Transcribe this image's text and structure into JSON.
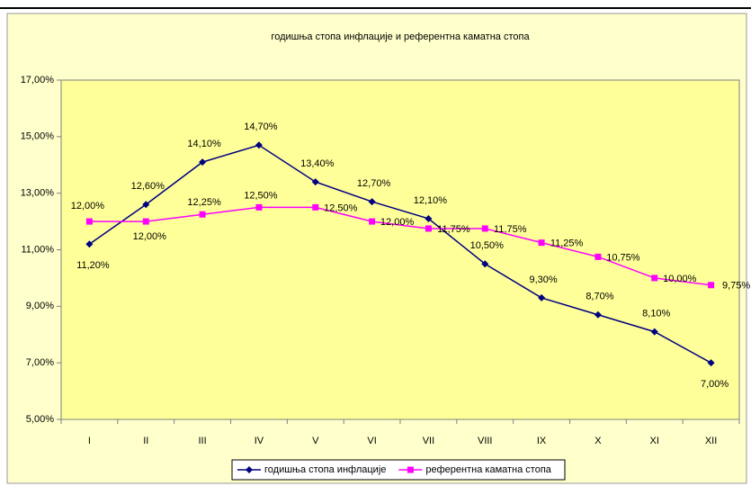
{
  "chart_data": {
    "type": "line",
    "title": "годишња стопа инфлације и референтна каматна стопа",
    "categories": [
      "I",
      "II",
      "III",
      "IV",
      "V",
      "VI",
      "VII",
      "VIII",
      "IX",
      "X",
      "XI",
      "XII"
    ],
    "series": [
      {
        "name": "годишња стопа инфлације",
        "color": "#000080",
        "values": [
          11.2,
          12.6,
          14.1,
          14.7,
          13.4,
          12.7,
          12.1,
          10.5,
          9.3,
          8.7,
          8.1,
          7.0
        ],
        "value_labels": [
          "11,20%",
          "12,60%",
          "14,10%",
          "14,70%",
          "13,40%",
          "12,70%",
          "12,10%",
          "10,50%",
          "9,30%",
          "8,70%",
          "8,10%",
          "7,00%"
        ]
      },
      {
        "name": "референтна каматна стопа",
        "color": "#FF00FF",
        "values": [
          12.0,
          12.0,
          12.25,
          12.5,
          12.5,
          12.0,
          11.75,
          11.75,
          11.25,
          10.75,
          10.0,
          9.75
        ],
        "value_labels": [
          "12,00%",
          "12,00%",
          "12,25%",
          "12,50%",
          "12,50%",
          "12,00%",
          "11,75%",
          "11,75%",
          "11,25%",
          "10,75%",
          "10,00%",
          "9,75%"
        ]
      }
    ],
    "ylim": [
      5,
      17
    ],
    "yticks": [
      {
        "value": 5,
        "label": "5,00%"
      },
      {
        "value": 7,
        "label": "7,00%"
      },
      {
        "value": 9,
        "label": "9,00%"
      },
      {
        "value": 11,
        "label": "11,00%"
      },
      {
        "value": 13,
        "label": "13,00%"
      },
      {
        "value": 15,
        "label": "15,00%"
      },
      {
        "value": 17,
        "label": "17,00%"
      }
    ],
    "legend": "bottom"
  }
}
